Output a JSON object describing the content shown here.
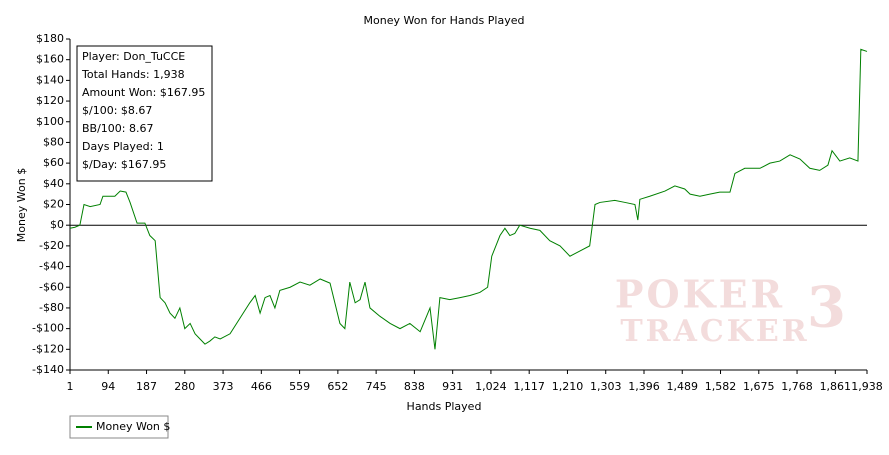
{
  "chart_data": {
    "type": "line",
    "title": "Money Won for Hands Played",
    "x_label": "Hands Played",
    "y_label": "Money Won $",
    "x": [
      1,
      13,
      25,
      35,
      50,
      74,
      81,
      110,
      123,
      137,
      147,
      164,
      183,
      195,
      208,
      220,
      232,
      244,
      256,
      268,
      280,
      293,
      305,
      317,
      329,
      341,
      353,
      366,
      390,
      414,
      438,
      451,
      463,
      475,
      487,
      499,
      511,
      536,
      560,
      584,
      609,
      633,
      657,
      669,
      681,
      694,
      706,
      718,
      730,
      754,
      779,
      803,
      827,
      852,
      876,
      888,
      900,
      924,
      949,
      973,
      997,
      1016,
      1026,
      1036,
      1046,
      1058,
      1070,
      1082,
      1094,
      1119,
      1143,
      1167,
      1192,
      1216,
      1240,
      1264,
      1277,
      1289,
      1325,
      1350,
      1374,
      1381,
      1386,
      1410,
      1447,
      1471,
      1495,
      1508,
      1532,
      1556,
      1580,
      1605,
      1617,
      1641,
      1678,
      1702,
      1726,
      1751,
      1775,
      1799,
      1823,
      1843,
      1853,
      1872,
      1896,
      1916,
      1923,
      1938
    ],
    "series": [
      {
        "name": "Money Won $",
        "color": "#008000",
        "values": [
          -3,
          -2,
          0,
          20,
          18,
          20,
          28,
          28,
          33,
          32,
          22,
          2,
          2,
          -10,
          -15,
          -70,
          -75,
          -85,
          -90,
          -80,
          -100,
          -95,
          -105,
          -110,
          -115,
          -112,
          -108,
          -110,
          -105,
          -90,
          -75,
          -68,
          -85,
          -70,
          -68,
          -80,
          -63,
          -60,
          -55,
          -58,
          -52,
          -56,
          -95,
          -100,
          -55,
          -75,
          -72,
          -55,
          -80,
          -88,
          -95,
          -100,
          -95,
          -103,
          -80,
          -120,
          -70,
          -72,
          -70,
          -68,
          -65,
          -60,
          -30,
          -20,
          -10,
          -3,
          -10,
          -8,
          0,
          -3,
          -5,
          -15,
          -20,
          -30,
          -25,
          -20,
          20,
          22,
          24,
          22,
          20,
          5,
          25,
          28,
          33,
          38,
          35,
          30,
          28,
          30,
          32,
          32,
          50,
          55,
          55,
          60,
          62,
          68,
          64,
          55,
          53,
          58,
          72,
          62,
          65,
          62,
          170,
          167.95
        ]
      }
    ],
    "xlim": [
      1,
      1938
    ],
    "xticks": [
      1,
      94,
      187,
      280,
      373,
      466,
      559,
      652,
      745,
      838,
      931,
      {
        "value": 1024,
        "label": "1,024"
      },
      {
        "value": 1117,
        "label": "1,117"
      },
      {
        "value": 1210,
        "label": "1,210"
      },
      {
        "value": 1303,
        "label": "1,303"
      },
      {
        "value": 1396,
        "label": "1,396"
      },
      {
        "value": 1489,
        "label": "1,489"
      },
      {
        "value": 1582,
        "label": "1,582"
      },
      {
        "value": 1675,
        "label": "1,675"
      },
      {
        "value": 1768,
        "label": "1,768"
      },
      {
        "value": 1861,
        "label": "1,861"
      },
      {
        "value": 1938,
        "label": "1,938"
      }
    ],
    "ylim": [
      -140,
      180
    ],
    "yticks": [
      {
        "value": -140,
        "label": "-$140"
      },
      {
        "value": -120,
        "label": "-$120"
      },
      {
        "value": -100,
        "label": "-$100"
      },
      {
        "value": -80,
        "label": "-$80"
      },
      {
        "value": -60,
        "label": "-$60"
      },
      {
        "value": -40,
        "label": "-$40"
      },
      {
        "value": -20,
        "label": "-$20"
      },
      {
        "value": 0,
        "label": "$0"
      },
      {
        "value": 20,
        "label": "$20"
      },
      {
        "value": 40,
        "label": "$40"
      },
      {
        "value": 60,
        "label": "$60"
      },
      {
        "value": 80,
        "label": "$80"
      },
      {
        "value": 100,
        "label": "$100"
      },
      {
        "value": 120,
        "label": "$120"
      },
      {
        "value": 140,
        "label": "$140"
      },
      {
        "value": 160,
        "label": "$160"
      },
      {
        "value": 180,
        "label": "$180"
      }
    ],
    "info_box": [
      "Player: Don_TuCCE",
      "Total Hands: 1,938",
      "Amount Won: $167.95",
      "$/100: $8.67",
      "BB/100: 8.67",
      "Days Played: 1",
      "$/Day: $167.95"
    ],
    "watermark": [
      "POKER",
      "TRACKER",
      "3"
    ],
    "legend": "bottom-left"
  }
}
